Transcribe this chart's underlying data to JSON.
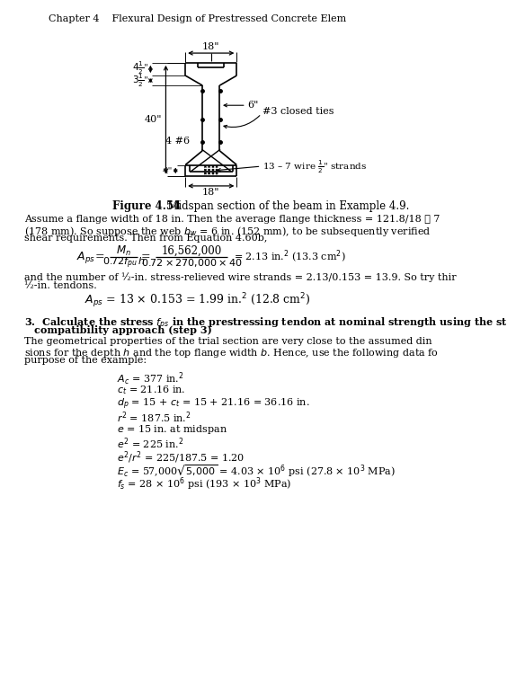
{
  "header": "Chapter 4    Flexural Design of Prestressed Concrete Elem",
  "figure_label": "Figure 4.54",
  "figure_caption": "   Midspan section of the beam in Example 4.9.",
  "bg_color": "#ffffff",
  "body_lines": [
    "Assume a flange width of 18 in. Then the average flange thickness = 121.8/18 ≅ 7",
    "(178 mm). So suppose the web $b_w$ = 6 in. (152 mm), to be subsequently verified",
    "shear requirements. Then from Equation 4.60b,"
  ],
  "body2": "and the number of ½-in. stress-relieved wire strands = 2.13/0.153 = 13.9. So try thir",
  "body3": "½-in. tendons.",
  "step3_body1": "The geometrical properties of the trial section are very close to the assumed din",
  "step3_body2": "sions for the depth $h$ and the top flange width $b$. Hence, use the following data fo",
  "step3_body3": "purpose of the example:"
}
